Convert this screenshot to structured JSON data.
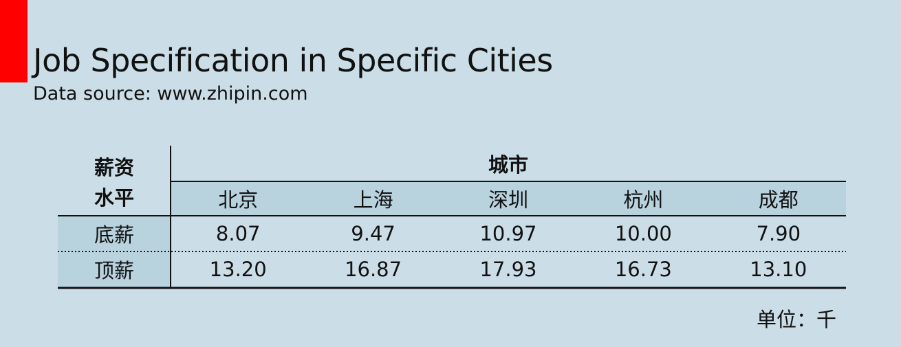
{
  "title": "Job Specification in Specific Cities",
  "subtitle": "Data source: www.zhipin.com",
  "unit_label": "单位：千",
  "colors": {
    "background": "#cbdde6",
    "accent": "#ff0000",
    "row_band": "#b8d2de"
  },
  "table": {
    "row_header_title_line1": "薪资",
    "row_header_title_line2": "水平",
    "column_group_title": "城市",
    "cities": [
      "北京",
      "上海",
      "深圳",
      "杭州",
      "成都"
    ],
    "rows": [
      {
        "label": "底薪",
        "values": [
          "8.07",
          "9.47",
          "10.97",
          "10.00",
          "7.90"
        ]
      },
      {
        "label": "顶薪",
        "values": [
          "13.20",
          "16.87",
          "17.93",
          "16.73",
          "13.10"
        ]
      }
    ]
  },
  "chart_data": {
    "type": "table",
    "title": "Job Specification in Specific Cities",
    "subtitle": "Data source: www.zhipin.com",
    "unit": "单位：千",
    "row_header": "薪资水平",
    "column_header": "城市",
    "categories": [
      "北京",
      "上海",
      "深圳",
      "杭州",
      "成都"
    ],
    "series": [
      {
        "name": "底薪",
        "values": [
          8.07,
          9.47,
          10.97,
          10.0,
          7.9
        ]
      },
      {
        "name": "顶薪",
        "values": [
          13.2,
          16.87,
          17.93,
          16.73,
          13.1
        ]
      }
    ]
  }
}
